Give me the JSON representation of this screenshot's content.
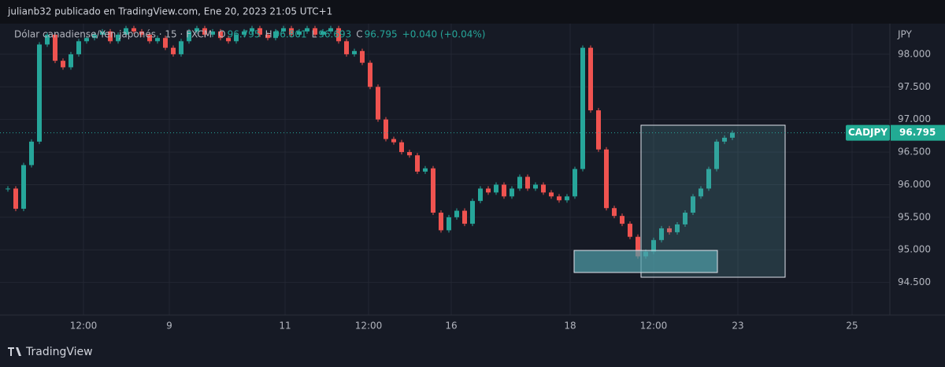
{
  "header": {
    "title": "julianb32 publicado en TradingView.com, Ene 20, 2023 21:05 UTC+1"
  },
  "legend": {
    "symbol": "Dólar canadiense/Yen japonés · 15 · FXCM",
    "ohlc": [
      {
        "label": "O",
        "value": "96.795"
      },
      {
        "label": "H",
        "value": "96.801"
      },
      {
        "label": "L",
        "value": "96.693"
      },
      {
        "label": "C",
        "value": "96.795"
      }
    ],
    "change": "+0.040 (+0.04%)"
  },
  "footer": {
    "brand": "TradingView"
  },
  "chart_data": {
    "type": "candlestick",
    "y_axis_label": "JPY",
    "price_tag": "CADJPY",
    "up_color": "#26a69a",
    "down_color": "#ef5350",
    "grid": true,
    "xlim": [
      0,
      339
    ],
    "ylim": [
      94.0,
      98.47
    ],
    "xticks": [
      {
        "value": 31.8,
        "label": "12:00"
      },
      {
        "value": 64.5,
        "label": "9"
      },
      {
        "value": 108.6,
        "label": "11"
      },
      {
        "value": 140.4,
        "label": "12:00"
      },
      {
        "value": 171.9,
        "label": "16"
      },
      {
        "value": 217.2,
        "label": "18"
      },
      {
        "value": 249,
        "label": "12:00"
      },
      {
        "value": 281.1,
        "label": "23"
      },
      {
        "value": 324.6,
        "label": "25"
      }
    ],
    "yticks": [
      {
        "value": 94.5,
        "label": "94.500"
      },
      {
        "value": 95,
        "label": "95.000"
      },
      {
        "value": 95.5,
        "label": "95.500"
      },
      {
        "value": 96,
        "label": "96.000"
      },
      {
        "value": 96.5,
        "label": "96.500"
      },
      {
        "value": 97,
        "label": "97.000"
      },
      {
        "value": 97.5,
        "label": "97.500"
      },
      {
        "value": 98,
        "label": "98.000"
      }
    ],
    "x": [
      3,
      6,
      9,
      12,
      15,
      18,
      21,
      24,
      27,
      30,
      33,
      36,
      39,
      42,
      45,
      48,
      51,
      54,
      57,
      60,
      63,
      66,
      69,
      72,
      75,
      78,
      81,
      84,
      87,
      90,
      93,
      96,
      99,
      102,
      105,
      108,
      111,
      114,
      117,
      120,
      123,
      126,
      129,
      132,
      135,
      138,
      141,
      144,
      147,
      150,
      153,
      156,
      159,
      162,
      165,
      168,
      171,
      174,
      177,
      180,
      183,
      186,
      189,
      192,
      195,
      198,
      201,
      204,
      207,
      210,
      213,
      216,
      219,
      222,
      225,
      228,
      231,
      234,
      237,
      240,
      243,
      246,
      249,
      252,
      255,
      258,
      261,
      264,
      267,
      270,
      273,
      276,
      279
    ],
    "series": [
      {
        "name": "CADJPY",
        "values": [
          95.94,
          95.63,
          96.3,
          96.66,
          98.15,
          98.3,
          97.9,
          97.8,
          98.0,
          98.2,
          98.25,
          98.3,
          98.35,
          98.2,
          98.3,
          98.4,
          98.35,
          98.3,
          98.2,
          98.25,
          98.1,
          98.0,
          98.2,
          98.35,
          98.4,
          98.3,
          98.35,
          98.25,
          98.2,
          98.3,
          98.35,
          98.4,
          98.3,
          98.25,
          98.35,
          98.4,
          98.3,
          98.35,
          98.4,
          98.3,
          98.35,
          98.4,
          98.2,
          98.0,
          98.05,
          97.87,
          97.5,
          97.0,
          96.7,
          96.65,
          96.5,
          96.45,
          96.2,
          96.25,
          95.57,
          95.3,
          95.5,
          95.6,
          95.4,
          95.75,
          95.94,
          95.88,
          96.0,
          95.82,
          95.94,
          96.12,
          95.94,
          96.0,
          95.88,
          95.82,
          95.76,
          95.82,
          96.24,
          98.1,
          97.14,
          96.54,
          95.64,
          95.52,
          95.4,
          95.2,
          94.9,
          94.97,
          95.15,
          95.33,
          95.27,
          95.39,
          95.57,
          95.82,
          95.94,
          96.24,
          96.66,
          96.72,
          96.795
        ]
      }
    ]
  }
}
